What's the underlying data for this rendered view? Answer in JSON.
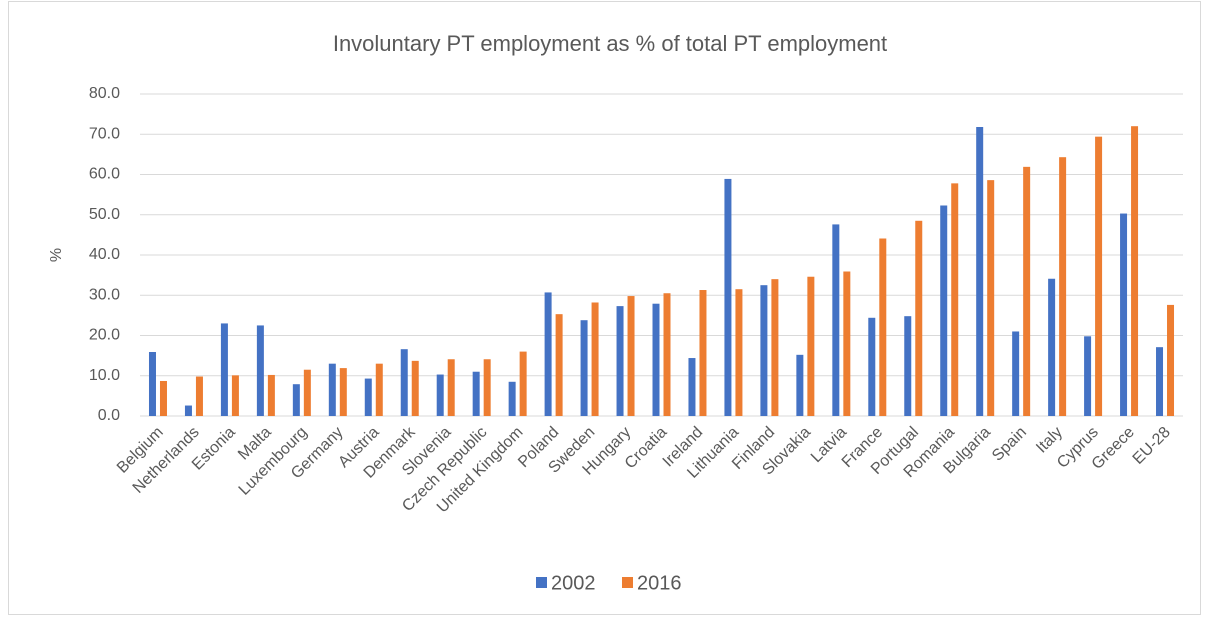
{
  "chart_data": {
    "type": "bar",
    "title": "Involuntary PT employment as % of total PT employment",
    "ylabel": "%",
    "categories": [
      "Belgium",
      "Netherlands",
      "Estonia",
      "Malta",
      "Luxembourg",
      "Germany",
      "Austria",
      "Denmark",
      "Slovenia",
      "Czech Republic",
      "United Kingdom",
      "Poland",
      "Sweden",
      "Hungary",
      "Croatia",
      "Ireland",
      "Lithuania",
      "Finland",
      "Slovakia",
      "Latvia",
      "France",
      "Portugal",
      "Romania",
      "Bulgaria",
      "Spain",
      "Italy",
      "Cyprus",
      "Greece",
      "EU-28"
    ],
    "series": [
      {
        "name": "2002",
        "color": "#4472c4",
        "values": [
          15.9,
          2.6,
          23.0,
          22.5,
          7.9,
          13.0,
          9.3,
          16.6,
          10.3,
          11.0,
          8.5,
          30.7,
          23.8,
          27.3,
          27.9,
          14.4,
          58.9,
          32.5,
          15.2,
          47.6,
          24.4,
          24.8,
          52.3,
          71.8,
          21.0,
          34.1,
          19.8,
          50.3,
          17.1
        ]
      },
      {
        "name": "2016",
        "color": "#ed7d31",
        "values": [
          8.7,
          9.8,
          10.1,
          10.2,
          11.5,
          11.9,
          13.0,
          13.7,
          14.1,
          14.1,
          16.0,
          25.3,
          28.2,
          29.8,
          30.5,
          31.3,
          31.5,
          34.0,
          34.6,
          35.9,
          44.1,
          48.5,
          57.8,
          58.6,
          61.9,
          64.3,
          69.4,
          72.0,
          27.6
        ]
      }
    ],
    "ylim": [
      0,
      80
    ],
    "yticks": [
      {
        "value": 0,
        "label": "0.0"
      },
      {
        "value": 10,
        "label": "10.0"
      },
      {
        "value": 20,
        "label": "20.0"
      },
      {
        "value": 30,
        "label": "30.0"
      },
      {
        "value": 40,
        "label": "40.0"
      },
      {
        "value": 50,
        "label": "50.0"
      },
      {
        "value": 60,
        "label": "60.0"
      },
      {
        "value": 70,
        "label": "70.0"
      },
      {
        "value": 80,
        "label": "80.0"
      }
    ],
    "grid": true,
    "legend": "bottom"
  }
}
